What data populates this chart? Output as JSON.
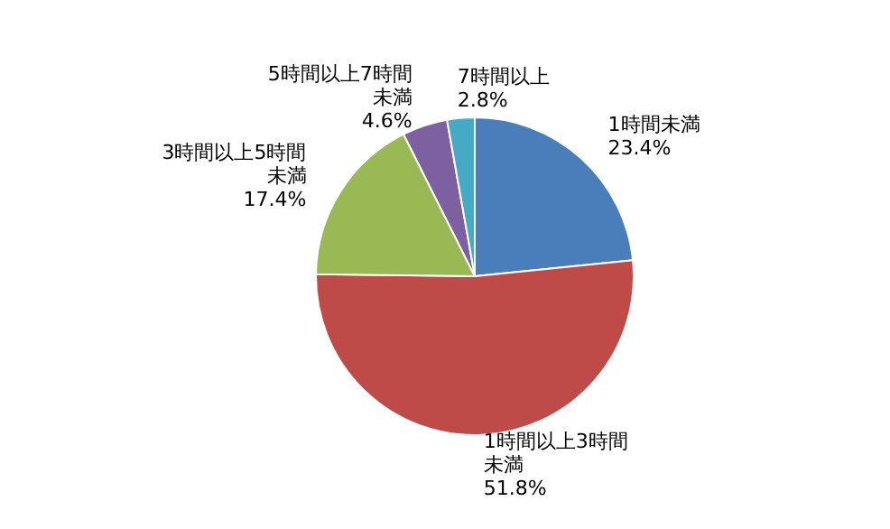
{
  "chart_data": {
    "type": "pie",
    "categories": [
      "1時間未満",
      "1時間以上3時間未満",
      "3時間以上5時間未満",
      "5時間以上7時間未満",
      "7時間以上"
    ],
    "values": [
      23.4,
      51.8,
      17.4,
      4.6,
      2.8
    ],
    "value_labels": [
      "23.4%",
      "51.8%",
      "17.4%",
      "4.6%",
      "2.8%"
    ],
    "colors": [
      "#4a7ebb",
      "#be4b48",
      "#98b954",
      "#7d60a0",
      "#46aac5"
    ],
    "legend": false
  }
}
